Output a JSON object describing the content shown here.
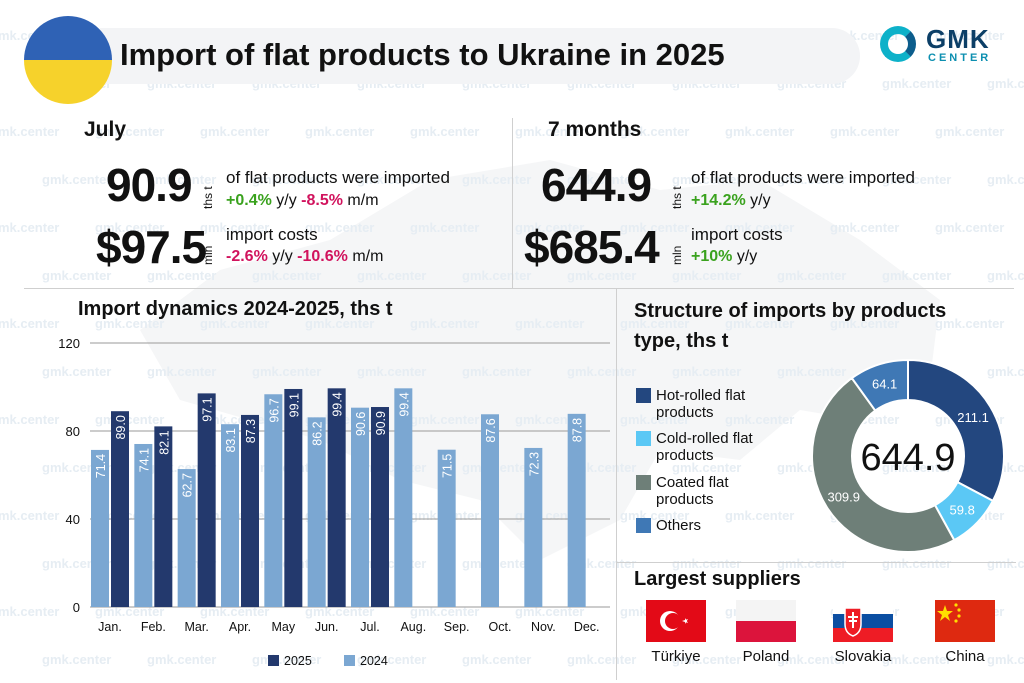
{
  "header": {
    "title": "Import of flat products to Ukraine in 2025",
    "logo_text": "GMK",
    "logo_sub": "CENTER"
  },
  "watermark": "gmk.center",
  "july": {
    "heading": "July",
    "volume": "90.9",
    "volume_unit": "ths t",
    "volume_desc": "of flat products were imported",
    "volume_yy": "+0.4%",
    "volume_yy_label": "y/y",
    "volume_mm": "-8.5%",
    "volume_mm_label": "m/m",
    "cost": "$97.5",
    "cost_unit": "mln",
    "cost_desc": "import costs",
    "cost_yy": "-2.6%",
    "cost_yy_label": "y/y",
    "cost_mm": "-10.6%",
    "cost_mm_label": "m/m"
  },
  "seven_months": {
    "heading": "7 months",
    "volume": "644.9",
    "volume_unit": "ths t",
    "volume_desc": "of flat products were imported",
    "volume_yy": "+14.2%",
    "volume_yy_label": "y/y",
    "cost": "$685.4",
    "cost_unit": "mln",
    "cost_desc": "import costs",
    "cost_yy": "+10%",
    "cost_yy_label": "y/y"
  },
  "structure": {
    "heading_line1": "Structure of imports by products",
    "heading_line2": "type, ths t",
    "total": "644.9",
    "legend": [
      {
        "line1": "Hot-rolled flat",
        "line2": "products",
        "color": "#23477f"
      },
      {
        "line1": "Cold-rolled flat",
        "line2": "products",
        "color": "#5bc8f5"
      },
      {
        "line1": "Coated flat",
        "line2": "products",
        "color": "#6e7f78"
      },
      {
        "line1": "Others",
        "line2": "",
        "color": "#3f78b5"
      }
    ]
  },
  "suppliers": {
    "heading": "Largest suppliers",
    "countries": [
      {
        "name": "Türkiye",
        "icon": "turkey-flag-icon"
      },
      {
        "name": "Poland",
        "icon": "poland-flag-icon"
      },
      {
        "name": "Slovakia",
        "icon": "slovakia-flag-icon"
      },
      {
        "name": "China",
        "icon": "china-flag-icon"
      }
    ]
  },
  "chart_data": [
    {
      "type": "bar",
      "title": "Import dynamics 2024-2025, ths t",
      "categories": [
        "Jan.",
        "Feb.",
        "Mar.",
        "Apr.",
        "May",
        "Jun.",
        "Jul.",
        "Aug.",
        "Sep.",
        "Oct.",
        "Nov.",
        "Dec."
      ],
      "series": [
        {
          "name": "2024",
          "color": "#7ba7d2",
          "values": [
            71.4,
            74.1,
            62.7,
            83.1,
            96.7,
            86.2,
            90.6,
            99.4,
            71.5,
            87.6,
            72.3,
            87.8
          ]
        },
        {
          "name": "2025",
          "color": "#23396d",
          "values": [
            89.0,
            82.1,
            97.1,
            87.3,
            99.1,
            99.4,
            90.9,
            null,
            null,
            null,
            null,
            null
          ]
        }
      ],
      "ylim": [
        0,
        120
      ],
      "yticks": [
        0,
        40,
        80,
        120
      ],
      "grid": true,
      "legend": "bottom"
    },
    {
      "type": "pie",
      "donut": true,
      "labels": [
        "Hot-rolled flat products",
        "Cold-rolled flat products",
        "Coated flat products",
        "Others"
      ],
      "values": [
        211.1,
        59.8,
        309.9,
        64.1
      ],
      "colors": [
        "#23477f",
        "#5bc8f5",
        "#6e7f78",
        "#3f78b5"
      ],
      "center_label": "644.9"
    }
  ]
}
